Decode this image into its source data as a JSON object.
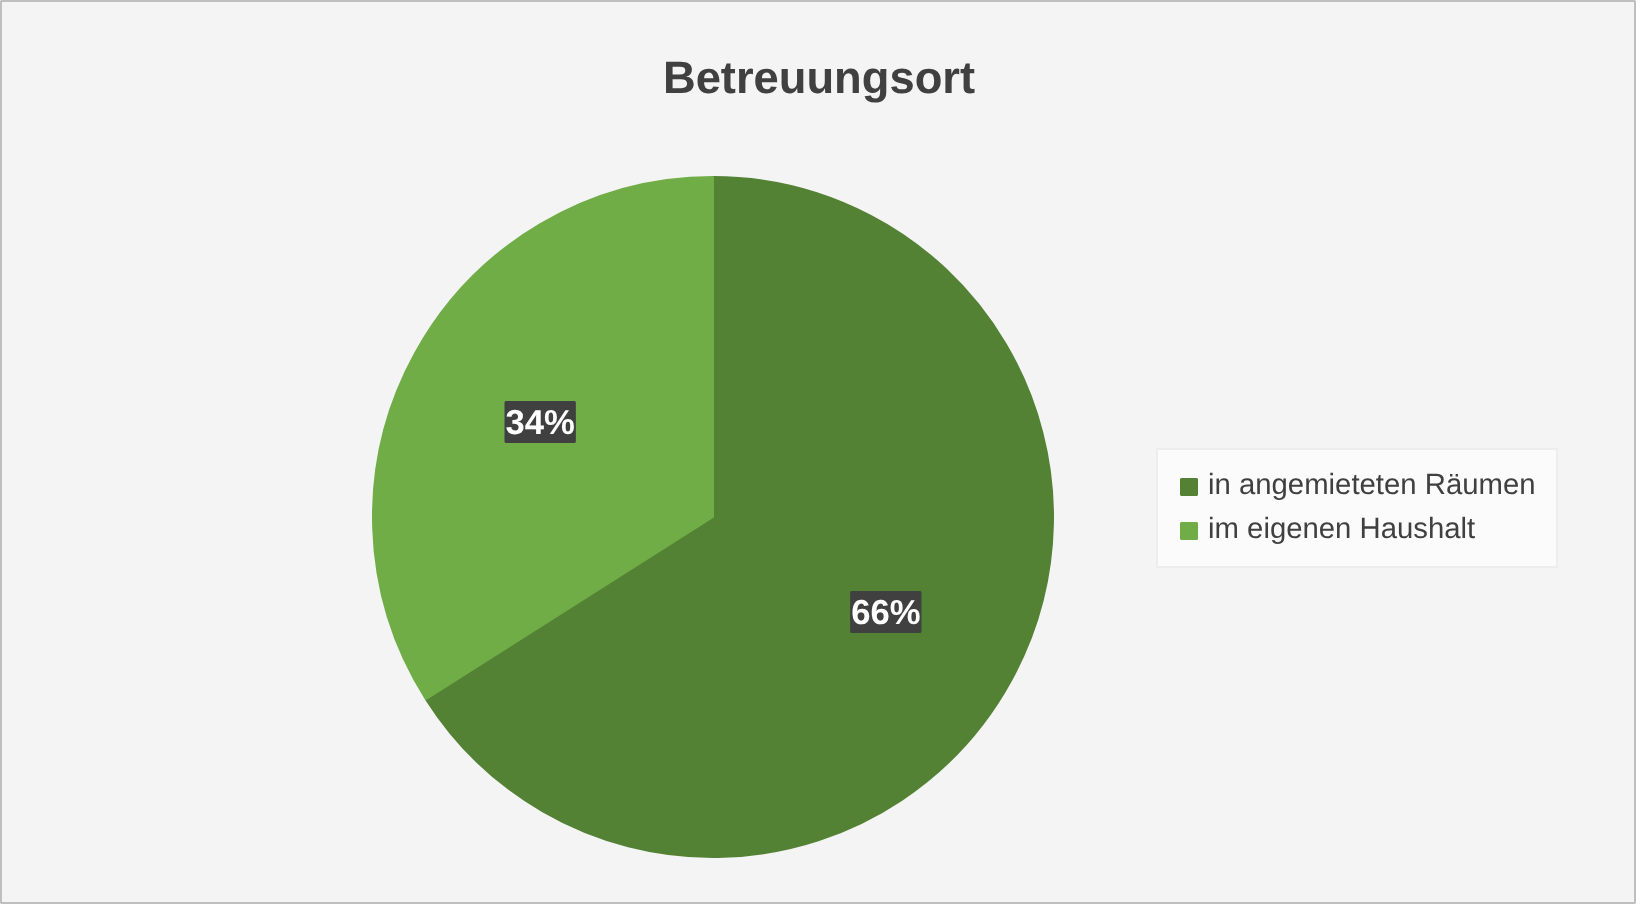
{
  "chart_data": {
    "type": "pie",
    "title": "Betreuungsort",
    "categories": [
      "in angemieteten Räumen",
      "im eigenen Haushalt"
    ],
    "values": [
      66,
      34
    ],
    "colors": [
      "#548235",
      "#70ad47"
    ],
    "value_labels": [
      "66%",
      "34%"
    ],
    "legend": "right"
  }
}
